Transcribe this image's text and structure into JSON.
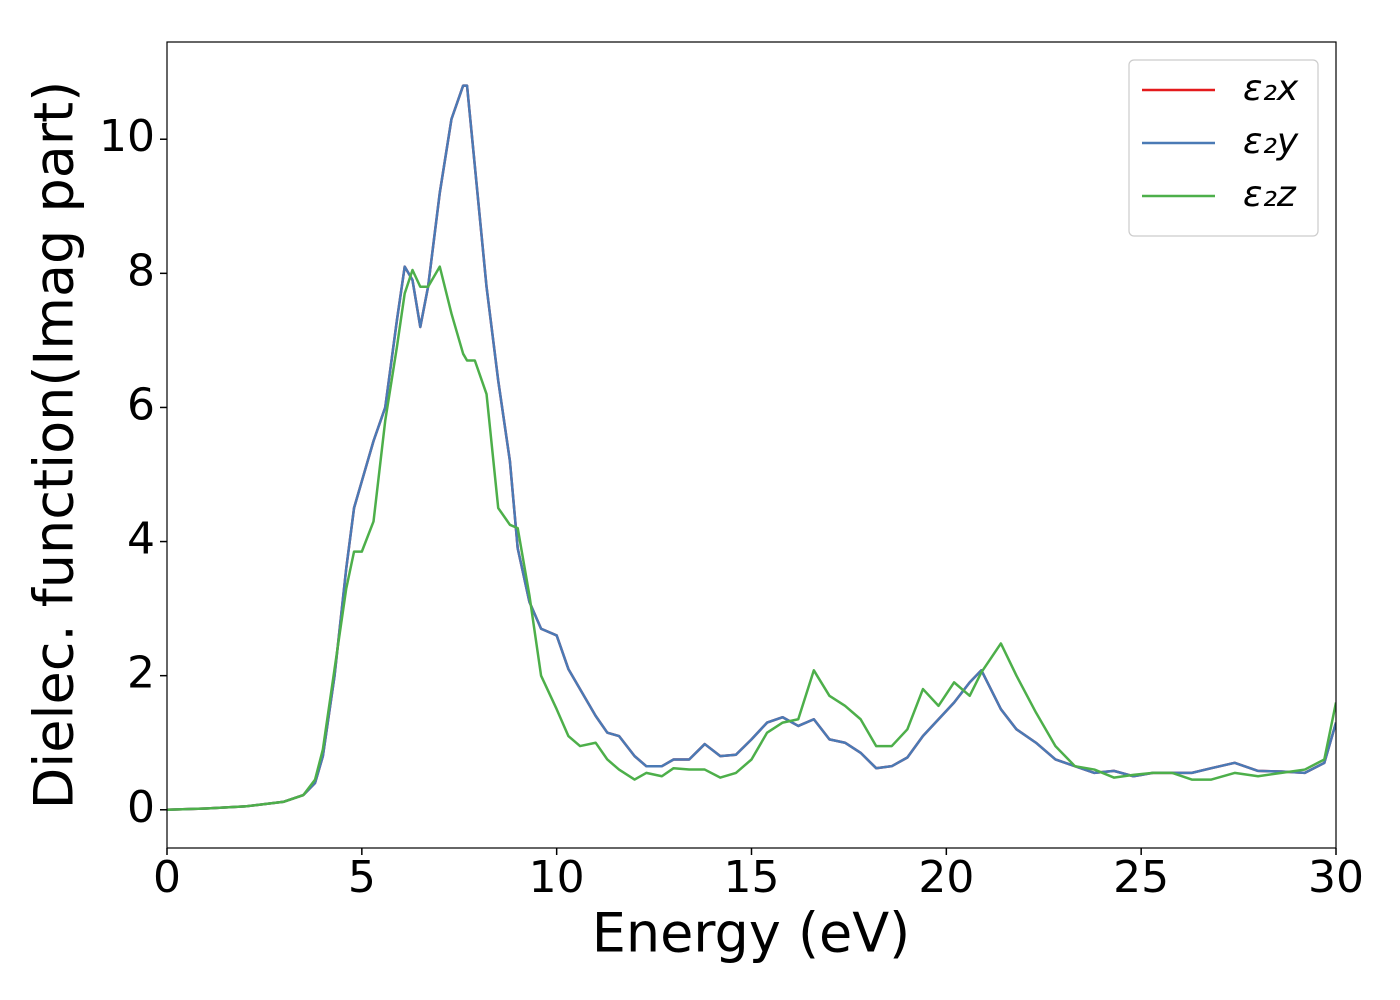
{
  "chart_data": {
    "type": "line",
    "xlabel": "Energy (eV)",
    "ylabel": "Dielec. function(Imag part)",
    "xlim": [
      0,
      30
    ],
    "ylim": [
      -0.57,
      11.45
    ],
    "xticks": [
      0,
      5,
      10,
      15,
      20,
      25,
      30
    ],
    "yticks": [
      0,
      2,
      4,
      6,
      8,
      10
    ],
    "grid": false,
    "legend": "upper right",
    "x": [
      0,
      1,
      2,
      3,
      3.5,
      3.8,
      4,
      4.3,
      4.6,
      4.8,
      5,
      5.3,
      5.6,
      5.9,
      6.1,
      6.3,
      6.5,
      6.7,
      7,
      7.3,
      7.6,
      7.7,
      7.9,
      8.2,
      8.5,
      8.8,
      9,
      9.3,
      9.6,
      10,
      10.3,
      10.6,
      11,
      11.3,
      11.6,
      12,
      12.3,
      12.7,
      13,
      13.4,
      13.8,
      14.2,
      14.6,
      15,
      15.4,
      15.8,
      16.2,
      16.6,
      17,
      17.4,
      17.8,
      18.2,
      18.6,
      19,
      19.4,
      19.8,
      20.2,
      20.6,
      20.9,
      21.4,
      21.8,
      22.3,
      22.8,
      23.3,
      23.8,
      24.3,
      24.8,
      25.3,
      25.8,
      26.3,
      26.8,
      27.4,
      28,
      28.6,
      29.2,
      29.7,
      30
    ],
    "series": [
      {
        "name": "ε₂x",
        "color": "#e41a1c",
        "values": [
          0,
          0.02,
          0.05,
          0.12,
          0.22,
          0.4,
          0.8,
          2.0,
          3.6,
          4.5,
          4.9,
          5.5,
          6.0,
          7.3,
          8.1,
          7.9,
          7.2,
          7.8,
          9.2,
          10.3,
          10.8,
          10.8,
          9.6,
          7.8,
          6.4,
          5.2,
          3.9,
          3.1,
          2.7,
          2.6,
          2.1,
          1.8,
          1.4,
          1.15,
          1.1,
          0.8,
          0.65,
          0.65,
          0.75,
          0.75,
          0.98,
          0.8,
          0.82,
          1.05,
          1.3,
          1.38,
          1.25,
          1.35,
          1.05,
          1.0,
          0.85,
          0.62,
          0.65,
          0.78,
          1.1,
          1.35,
          1.6,
          1.9,
          2.08,
          1.5,
          1.2,
          1.0,
          0.75,
          0.65,
          0.55,
          0.58,
          0.5,
          0.55,
          0.55,
          0.55,
          0.62,
          0.7,
          0.58,
          0.57,
          0.55,
          0.7,
          1.3
        ]
      },
      {
        "name": "ε₂y",
        "color": "#4a7ab5",
        "values": [
          0,
          0.02,
          0.05,
          0.12,
          0.22,
          0.4,
          0.8,
          2.0,
          3.6,
          4.5,
          4.9,
          5.5,
          6.0,
          7.3,
          8.1,
          7.9,
          7.2,
          7.8,
          9.2,
          10.3,
          10.8,
          10.8,
          9.6,
          7.8,
          6.4,
          5.2,
          3.9,
          3.1,
          2.7,
          2.6,
          2.1,
          1.8,
          1.4,
          1.15,
          1.1,
          0.8,
          0.65,
          0.65,
          0.75,
          0.75,
          0.98,
          0.8,
          0.82,
          1.05,
          1.3,
          1.38,
          1.25,
          1.35,
          1.05,
          1.0,
          0.85,
          0.62,
          0.65,
          0.78,
          1.1,
          1.35,
          1.6,
          1.9,
          2.08,
          1.5,
          1.2,
          1.0,
          0.75,
          0.65,
          0.55,
          0.58,
          0.5,
          0.55,
          0.55,
          0.55,
          0.62,
          0.7,
          0.58,
          0.57,
          0.55,
          0.7,
          1.3
        ]
      },
      {
        "name": "ε₂z",
        "color": "#4daf4a",
        "values": [
          0,
          0.02,
          0.05,
          0.12,
          0.22,
          0.45,
          0.9,
          2.1,
          3.3,
          3.85,
          3.85,
          4.3,
          5.8,
          6.9,
          7.7,
          8.05,
          7.8,
          7.8,
          8.1,
          7.4,
          6.8,
          6.7,
          6.7,
          6.2,
          4.5,
          4.25,
          4.2,
          3.2,
          2.0,
          1.5,
          1.1,
          0.95,
          1.0,
          0.75,
          0.6,
          0.45,
          0.55,
          0.5,
          0.62,
          0.6,
          0.6,
          0.48,
          0.55,
          0.75,
          1.15,
          1.3,
          1.35,
          2.08,
          1.7,
          1.55,
          1.35,
          0.95,
          0.95,
          1.2,
          1.8,
          1.55,
          1.9,
          1.7,
          2.05,
          2.48,
          2.0,
          1.45,
          0.95,
          0.65,
          0.6,
          0.48,
          0.52,
          0.55,
          0.55,
          0.45,
          0.45,
          0.55,
          0.5,
          0.55,
          0.6,
          0.75,
          1.6
        ]
      }
    ]
  }
}
